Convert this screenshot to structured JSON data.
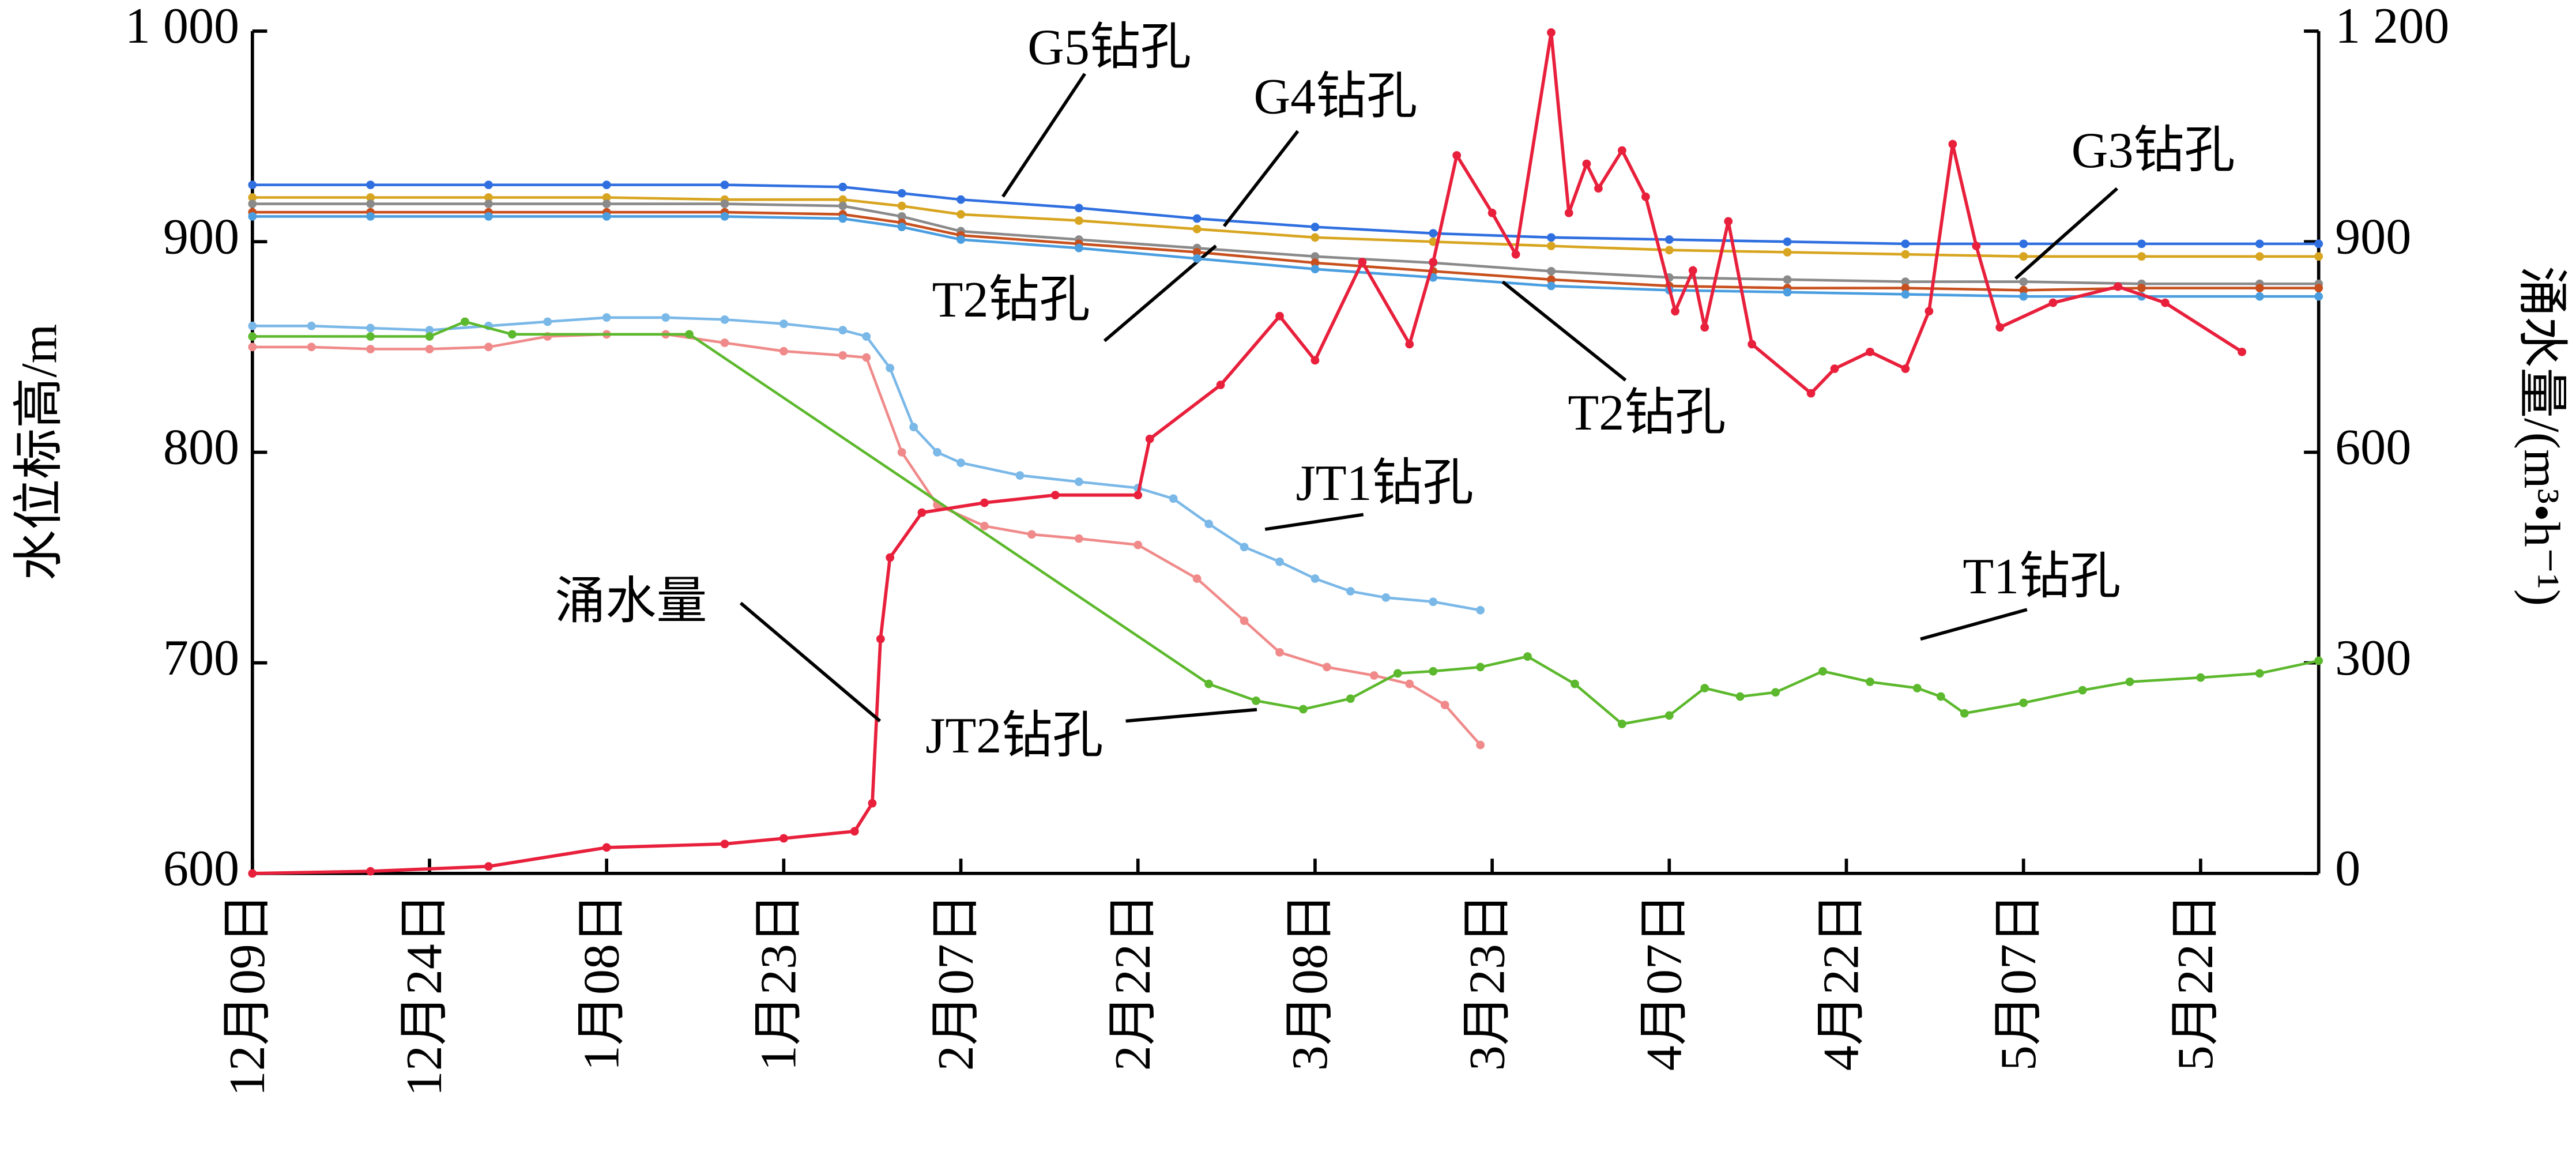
{
  "chart_data": {
    "type": "line",
    "y_label": "水位标高/m",
    "y2_label": "涌水量/(m³•h⁻¹)",
    "xlim": [
      0,
      175
    ],
    "xticks": [
      {
        "value": 0,
        "label": "12月09日"
      },
      {
        "value": 15,
        "label": "12月24日"
      },
      {
        "value": 30,
        "label": "1月08日"
      },
      {
        "value": 45,
        "label": "1月23日"
      },
      {
        "value": 60,
        "label": "2月07日"
      },
      {
        "value": 75,
        "label": "2月22日"
      },
      {
        "value": 90,
        "label": "3月08日"
      },
      {
        "value": 105,
        "label": "3月23日"
      },
      {
        "value": 120,
        "label": "4月07日"
      },
      {
        "value": 135,
        "label": "4月22日"
      },
      {
        "value": 150,
        "label": "5月07日"
      },
      {
        "value": 165,
        "label": "5月22日"
      }
    ],
    "ylim": [
      600,
      1000
    ],
    "yticks": [
      600,
      700,
      800,
      900,
      {
        "value": 1000,
        "label": "1 000"
      }
    ],
    "y2lim": [
      0,
      1200
    ],
    "y2ticks": [
      0,
      300,
      600,
      900,
      {
        "value": 1200,
        "label": "1 200"
      }
    ],
    "series": [
      {
        "name": "G5钻孔",
        "color": "#2f6fe0",
        "x": [
          0,
          10,
          20,
          30,
          40,
          50,
          55,
          60,
          70,
          80,
          90,
          100,
          110,
          120,
          130,
          140,
          150,
          160,
          170,
          175
        ],
        "values": [
          927,
          927,
          927,
          927,
          927,
          926,
          923,
          920,
          916,
          911,
          907,
          904,
          902,
          901,
          900,
          899,
          899,
          899,
          899,
          899
        ]
      },
      {
        "name": "G4钻孔",
        "color": "#d8a520",
        "x": [
          0,
          10,
          20,
          30,
          40,
          50,
          55,
          60,
          70,
          80,
          90,
          100,
          110,
          120,
          130,
          140,
          150,
          160,
          170,
          175
        ],
        "values": [
          921,
          921,
          921,
          921,
          920,
          920,
          917,
          913,
          910,
          906,
          902,
          900,
          898,
          896,
          895,
          894,
          893,
          893,
          893,
          893
        ]
      },
      {
        "name": "G3钻孔",
        "color": "#8a8a8a",
        "x": [
          0,
          10,
          20,
          30,
          40,
          50,
          55,
          60,
          70,
          80,
          90,
          100,
          110,
          120,
          130,
          140,
          150,
          160,
          170,
          175
        ],
        "values": [
          918,
          918,
          918,
          918,
          918,
          917,
          912,
          905,
          901,
          897,
          893,
          890,
          886,
          883,
          882,
          881,
          881,
          880,
          880,
          880
        ]
      },
      {
        "name": "T2钻孔",
        "color": "#c8501e",
        "x": [
          0,
          10,
          20,
          30,
          40,
          50,
          55,
          60,
          70,
          80,
          90,
          100,
          110,
          120,
          130,
          140,
          150,
          160,
          170,
          175
        ],
        "values": [
          914,
          914,
          914,
          914,
          914,
          913,
          909,
          903,
          899,
          895,
          890,
          886,
          882,
          879,
          878,
          878,
          877,
          878,
          878,
          878
        ]
      },
      {
        "name": "T2钻孔",
        "color": "#4a9ee0",
        "x": [
          0,
          10,
          20,
          30,
          40,
          50,
          55,
          60,
          70,
          80,
          90,
          100,
          110,
          120,
          130,
          140,
          150,
          160,
          170,
          175
        ],
        "values": [
          912,
          912,
          912,
          912,
          912,
          911,
          907,
          901,
          897,
          892,
          887,
          883,
          879,
          877,
          876,
          875,
          874,
          874,
          874,
          874
        ]
      },
      {
        "name": "JT1钻孔",
        "color": "#7ab8e8",
        "x": [
          0,
          5,
          10,
          15,
          20,
          25,
          30,
          35,
          40,
          45,
          50,
          52,
          54,
          56,
          58,
          60,
          65,
          70,
          75,
          78,
          81,
          84,
          87,
          90,
          93,
          96,
          100,
          104
        ],
        "values": [
          860,
          860,
          859,
          858,
          860,
          862,
          864,
          864,
          863,
          861,
          858,
          855,
          840,
          812,
          800,
          795,
          789,
          786,
          783,
          778,
          766,
          755,
          748,
          740,
          734,
          731,
          729,
          725
        ]
      },
      {
        "name": "JT2钻孔",
        "color": "#f08a8a",
        "x": [
          0,
          5,
          10,
          15,
          20,
          25,
          30,
          35,
          40,
          45,
          50,
          52,
          55,
          58,
          62,
          66,
          70,
          75,
          80,
          84,
          87,
          91,
          95,
          98,
          101,
          104
        ],
        "values": [
          850,
          850,
          849,
          849,
          850,
          855,
          856,
          856,
          852,
          848,
          846,
          845,
          800,
          775,
          765,
          761,
          759,
          756,
          740,
          720,
          705,
          698,
          694,
          690,
          680,
          661
        ]
      },
      {
        "name": "T1钻孔",
        "color": "#5cb82c",
        "x": [
          0,
          10,
          15,
          18,
          22,
          37,
          81,
          85,
          89,
          93,
          97,
          100,
          104,
          108,
          112,
          116,
          120,
          123,
          126,
          129,
          133,
          137,
          141,
          143,
          145,
          150,
          155,
          159,
          165,
          170,
          175
        ],
        "values": [
          855,
          855,
          855,
          862,
          856,
          856,
          690,
          682,
          678,
          683,
          695,
          696,
          698,
          703,
          690,
          671,
          675,
          688,
          684,
          686,
          696,
          691,
          688,
          684,
          676,
          681,
          687,
          691,
          693,
          695,
          701
        ]
      },
      {
        "name": "涌水量",
        "color": "#e8203c",
        "axis": "y2",
        "x": [
          0,
          10,
          20,
          30,
          40,
          45,
          51,
          52.5,
          53.2,
          54,
          56.7,
          62,
          68,
          75,
          76,
          82,
          87,
          90,
          94,
          98,
          100,
          102,
          105,
          107,
          110,
          111.5,
          113,
          114,
          116,
          118,
          120.5,
          122,
          123,
          125,
          127,
          132,
          134,
          137,
          140,
          142,
          144,
          146,
          148,
          152.5,
          158,
          162,
          168.5
        ],
        "values": [
          0,
          3,
          10,
          37,
          42,
          50,
          60,
          100,
          334,
          450,
          514,
          528,
          539,
          539,
          619,
          696,
          794,
          731,
          871,
          754,
          871,
          1023,
          941,
          882,
          1198,
          941,
          1011,
          976,
          1030,
          964,
          801,
          859,
          778,
          929,
          754,
          684,
          719,
          743,
          719,
          801,
          1039,
          894,
          778,
          813,
          836,
          813,
          743
        ]
      }
    ]
  }
}
